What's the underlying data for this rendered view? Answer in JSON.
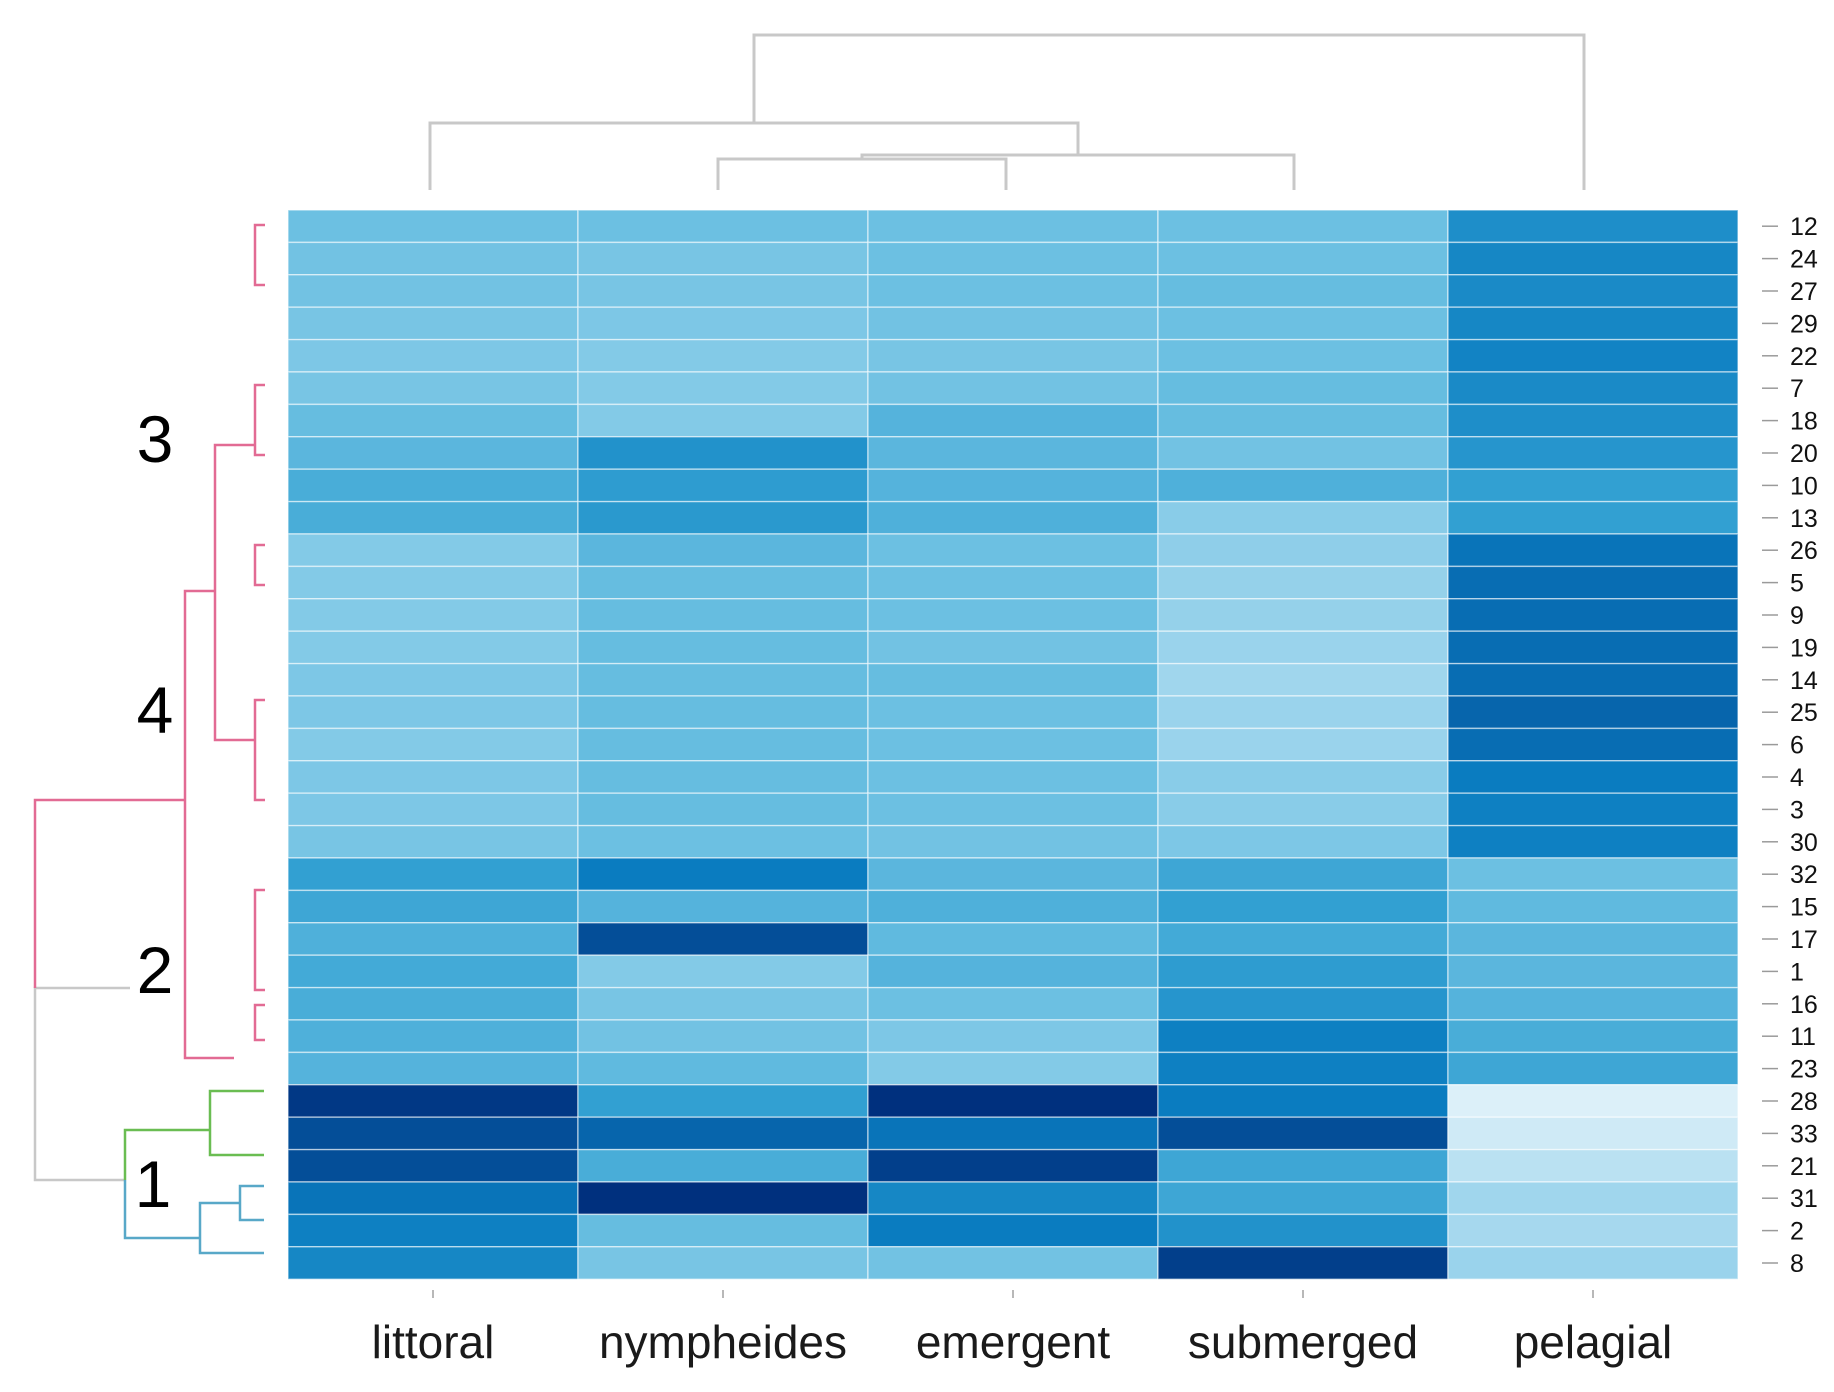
{
  "chart_data": {
    "type": "heatmap",
    "title": "",
    "columns": [
      "littoral",
      "nympheides",
      "emergent",
      "submerged",
      "pelagial"
    ],
    "rows": [
      "12",
      "24",
      "27",
      "29",
      "22",
      "7",
      "18",
      "20",
      "10",
      "13",
      "26",
      "5",
      "9",
      "19",
      "14",
      "25",
      "6",
      "4",
      "3",
      "30",
      "32",
      "15",
      "17",
      "1",
      "16",
      "11",
      "23",
      "28",
      "33",
      "21",
      "31",
      "2",
      "8"
    ],
    "values": [
      [
        0.4,
        0.4,
        0.4,
        0.4,
        0.7
      ],
      [
        0.38,
        0.36,
        0.4,
        0.4,
        0.74
      ],
      [
        0.38,
        0.36,
        0.4,
        0.42,
        0.72
      ],
      [
        0.36,
        0.34,
        0.38,
        0.4,
        0.74
      ],
      [
        0.34,
        0.32,
        0.36,
        0.4,
        0.76
      ],
      [
        0.36,
        0.32,
        0.38,
        0.42,
        0.72
      ],
      [
        0.42,
        0.32,
        0.48,
        0.42,
        0.7
      ],
      [
        0.46,
        0.68,
        0.46,
        0.38,
        0.66
      ],
      [
        0.52,
        0.62,
        0.48,
        0.5,
        0.6
      ],
      [
        0.52,
        0.64,
        0.5,
        0.3,
        0.6
      ],
      [
        0.32,
        0.46,
        0.4,
        0.28,
        0.82
      ],
      [
        0.32,
        0.42,
        0.4,
        0.26,
        0.84
      ],
      [
        0.32,
        0.42,
        0.4,
        0.26,
        0.84
      ],
      [
        0.32,
        0.42,
        0.38,
        0.24,
        0.84
      ],
      [
        0.34,
        0.42,
        0.42,
        0.22,
        0.84
      ],
      [
        0.34,
        0.42,
        0.4,
        0.24,
        0.86
      ],
      [
        0.32,
        0.42,
        0.4,
        0.24,
        0.84
      ],
      [
        0.34,
        0.42,
        0.4,
        0.3,
        0.8
      ],
      [
        0.34,
        0.42,
        0.4,
        0.3,
        0.78
      ],
      [
        0.36,
        0.4,
        0.38,
        0.34,
        0.78
      ],
      [
        0.6,
        0.8,
        0.46,
        0.56,
        0.4
      ],
      [
        0.56,
        0.48,
        0.5,
        0.6,
        0.44
      ],
      [
        0.5,
        0.92,
        0.44,
        0.54,
        0.46
      ],
      [
        0.54,
        0.32,
        0.48,
        0.62,
        0.46
      ],
      [
        0.52,
        0.36,
        0.4,
        0.66,
        0.48
      ],
      [
        0.5,
        0.38,
        0.34,
        0.78,
        0.52
      ],
      [
        0.48,
        0.44,
        0.32,
        0.78,
        0.56
      ],
      [
        0.98,
        0.6,
        1.0,
        0.8,
        0.04
      ],
      [
        0.92,
        0.86,
        0.82,
        0.92,
        0.08
      ],
      [
        0.92,
        0.52,
        0.96,
        0.56,
        0.14
      ],
      [
        0.82,
        1.0,
        0.74,
        0.56,
        0.22
      ],
      [
        0.78,
        0.42,
        0.8,
        0.68,
        0.2
      ],
      [
        0.74,
        0.36,
        0.38,
        0.96,
        0.24
      ]
    ],
    "value_range": [
      0,
      1
    ],
    "color_scale": [
      "#eaf6fc",
      "#a6d8ee",
      "#6cc0e2",
      "#32a0d2",
      "#0a7cc0",
      "#00307e"
    ],
    "cluster_labels": [
      "3",
      "4",
      "2",
      "1"
    ],
    "cluster_colors": {
      "clusters_2_3_4": "#e26b94",
      "cluster_1_a": "#6abd52",
      "cluster_1_b": "#58a8c8",
      "root": "#c8c8c8"
    },
    "column_dendrogram_color": "#c8c8c8",
    "xlabel": "",
    "ylabel": "",
    "legend": "none"
  }
}
